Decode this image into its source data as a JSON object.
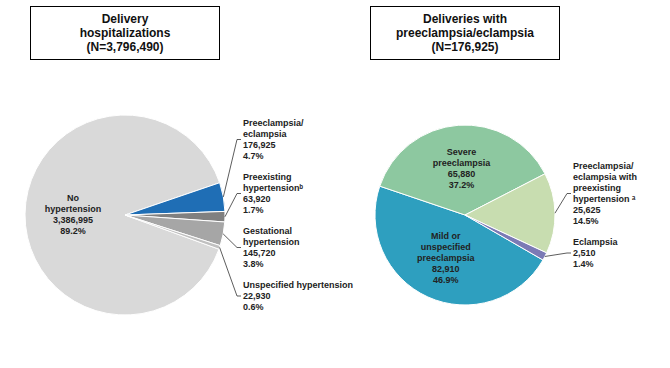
{
  "chart_data": [
    {
      "type": "pie",
      "title": "Delivery\nhospitalizations\n(N=3,796,490)",
      "categories": [
        "No\nhypertension",
        "Preeclampsia/\neclampsia",
        "Preexisting\nhypertensionᵇ",
        "Gestational\nhypertension",
        "Unspecified hypertension"
      ],
      "values": [
        3386995,
        176925,
        63920,
        145720,
        22930
      ],
      "value_labels": [
        "3,386,995",
        "176,925",
        "63,920",
        "145,720",
        "22,930"
      ],
      "percents": [
        89.2,
        4.7,
        1.7,
        3.8,
        0.6
      ],
      "percent_labels": [
        "89.2%",
        "4.7%",
        "1.7%",
        "3.8%",
        "0.6%"
      ],
      "colors": [
        "#d9d9d9",
        "#1f6eb5",
        "#808080",
        "#a6a6a6",
        "#c0c0c0"
      ]
    },
    {
      "type": "pie",
      "title": "Deliveries with\npreeclampsia/eclampsia\n(N=176,925)",
      "categories": [
        "Mild or\nunspecified\npreeclampsia",
        "Severe\npreeclampsia",
        "Preeclampsia/\neclampsia with\npreexisting\nhypertension ᵃ",
        "Eclampsia"
      ],
      "values": [
        82910,
        65880,
        25625,
        2510
      ],
      "value_labels": [
        "82,910",
        "65,880",
        "25,625",
        "2,510"
      ],
      "percents": [
        46.9,
        37.2,
        14.5,
        1.4
      ],
      "percent_labels": [
        "46.9%",
        "37.2%",
        "14.5%",
        "1.4%"
      ],
      "colors": [
        "#2e9fbf",
        "#8dc8a0",
        "#c8ddb0",
        "#7b7ab5"
      ]
    }
  ]
}
